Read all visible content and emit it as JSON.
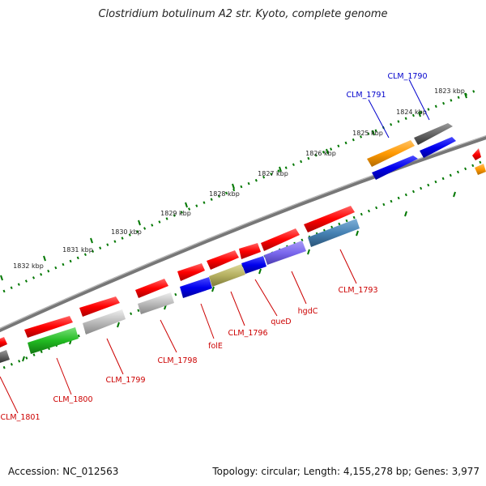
{
  "title": "Clostridium botulinum A2 str. Kyoto, complete genome",
  "footer": {
    "accession": "Accession: NC_012563",
    "summary": "Topology: circular; Length: 4,155,278 bp; Genes: 3,977"
  },
  "kbp_labels": [
    {
      "text": "1823 kbp"
    },
    {
      "text": "1824 kbp"
    },
    {
      "text": "1825 kbp"
    },
    {
      "text": "1826 kbp"
    },
    {
      "text": "1827 kbp"
    },
    {
      "text": "1828 kbp"
    },
    {
      "text": "1829 kbp"
    },
    {
      "text": "1830 kbp"
    },
    {
      "text": "1831 kbp"
    },
    {
      "text": "1832 kbp"
    }
  ],
  "gene_labels": [
    {
      "text": "CLM_1790",
      "color": "blue"
    },
    {
      "text": "CLM_1791",
      "color": "blue"
    },
    {
      "text": "CLM_1793",
      "color": "red"
    },
    {
      "text": "hgdC",
      "color": "red"
    },
    {
      "text": "queD",
      "color": "red"
    },
    {
      "text": "CLM_1796",
      "color": "red"
    },
    {
      "text": "folE",
      "color": "red"
    },
    {
      "text": "CLM_1798",
      "color": "red"
    },
    {
      "text": "CLM_1799",
      "color": "red"
    },
    {
      "text": "CLM_1800",
      "color": "red"
    },
    {
      "text": "CLM_1801",
      "color": "red"
    }
  ],
  "colors": {
    "cds": "#ff0000",
    "blue_feature": "#0000ee",
    "orange_feature": "#ff9900",
    "grey_feature": "#666666",
    "light_grey_feature": "#bbbbbb",
    "olive_feature": "#b5b060",
    "purple_feature": "#7b68ee",
    "steel_feature": "#4682b4",
    "green_feature": "#22bb22",
    "tick": "#007700",
    "backbone": "#777777"
  }
}
